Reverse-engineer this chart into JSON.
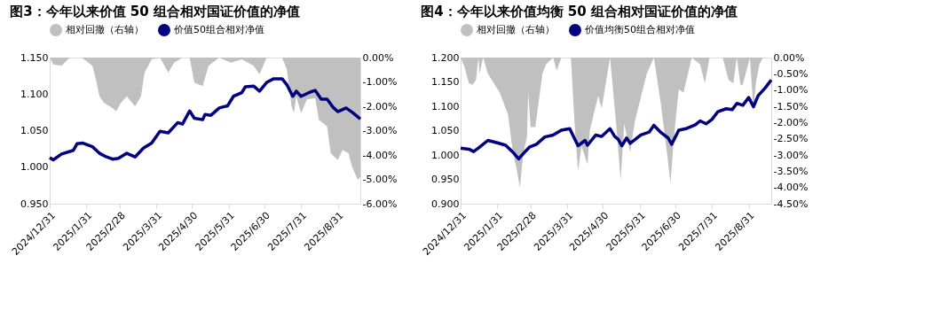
{
  "chart_data": [
    {
      "type": "line",
      "title": "图3：今年以来价值 50 组合相对国证价值的净值",
      "legend": "top",
      "grid": false,
      "xlim": [
        "2024-12-31",
        "2025-09-19"
      ],
      "xticks": [
        {
          "value": "2024-12-31",
          "label": "2024/12/31"
        },
        {
          "value": "2025-01-31",
          "label": "2025/1/31"
        },
        {
          "value": "2025-02-28",
          "label": "2025/2/28"
        },
        {
          "value": "2025-03-31",
          "label": "2025/3/31"
        },
        {
          "value": "2025-04-30",
          "label": "2025/4/30"
        },
        {
          "value": "2025-05-31",
          "label": "2025/5/31"
        },
        {
          "value": "2025-06-30",
          "label": "2025/6/30"
        },
        {
          "value": "2025-07-31",
          "label": "2025/7/31"
        },
        {
          "value": "2025-08-31",
          "label": "2025/8/31"
        }
      ],
      "ylim": [
        0.95,
        1.15
      ],
      "yticks": [
        {
          "value": 0.95,
          "label": "0.950"
        },
        {
          "value": 1.0,
          "label": "1.000"
        },
        {
          "value": 1.05,
          "label": "1.050"
        },
        {
          "value": 1.1,
          "label": "1.100"
        },
        {
          "value": 1.15,
          "label": "1.150"
        }
      ],
      "y2lim": [
        -6,
        0
      ],
      "y2ticks": [
        {
          "value": -6,
          "label": "-6.00%"
        },
        {
          "value": -5,
          "label": "-5.00%"
        },
        {
          "value": -4,
          "label": "-4.00%"
        },
        {
          "value": -3,
          "label": "-3.00%"
        },
        {
          "value": -2,
          "label": "-2.00%"
        },
        {
          "value": -1,
          "label": "-1.00%"
        },
        {
          "value": 0,
          "label": "0.00%"
        }
      ],
      "series": [
        {
          "name": "相对回撤（右轴）",
          "type": "area",
          "axis": "y2",
          "color": "#c0c0c0",
          "x": [
            "2024-12-31",
            "2025-01-03",
            "2025-01-10",
            "2025-01-17",
            "2025-01-27",
            "2025-02-05",
            "2025-02-08",
            "2025-02-11",
            "2025-02-15",
            "2025-02-22",
            "2025-02-25",
            "2025-03-01",
            "2025-03-06",
            "2025-03-13",
            "2025-03-18",
            "2025-03-21",
            "2025-03-27",
            "2025-04-03",
            "2025-04-10",
            "2025-04-15",
            "2025-04-22",
            "2025-04-28",
            "2025-05-02",
            "2025-05-09",
            "2025-05-14",
            "2025-05-23",
            "2025-06-02",
            "2025-06-11",
            "2025-06-21",
            "2025-06-26",
            "2025-07-02",
            "2025-07-15",
            "2025-07-19",
            "2025-07-23",
            "2025-07-25",
            "2025-07-27",
            "2025-07-31",
            "2025-08-05",
            "2025-08-12",
            "2025-08-15",
            "2025-08-22",
            "2025-08-25",
            "2025-08-31",
            "2025-09-04",
            "2025-09-09",
            "2025-09-12",
            "2025-09-17",
            "2025-09-19"
          ],
          "values": [
            0,
            -0.28,
            -0.34,
            0,
            0,
            -0.34,
            -0.9,
            -1.59,
            -1.86,
            -2.07,
            -2.21,
            -1.86,
            -1.59,
            -2.0,
            -1.59,
            -0.62,
            -0.07,
            0,
            -0.62,
            -0.21,
            0,
            0,
            -1.03,
            -1.17,
            -0.34,
            0,
            -0.21,
            -0.07,
            -0.34,
            -0.69,
            0,
            0,
            -0.48,
            -2.0,
            -2.28,
            -1.59,
            -2.28,
            -1.72,
            -1.66,
            -2.55,
            -2.83,
            -3.93,
            -4.21,
            -3.79,
            -3.93,
            -4.48,
            -5.03,
            -4.9
          ]
        },
        {
          "name": "价值50组合相对净值",
          "color": "#000080",
          "x": [
            "2024-12-31",
            "2025-01-03",
            "2025-01-10",
            "2025-01-20",
            "2025-01-23",
            "2025-01-28",
            "2025-02-05",
            "2025-02-11",
            "2025-02-17",
            "2025-02-22",
            "2025-02-27",
            "2025-03-06",
            "2025-03-13",
            "2025-03-20",
            "2025-03-27",
            "2025-04-03",
            "2025-04-10",
            "2025-04-18",
            "2025-04-22",
            "2025-04-28",
            "2025-05-02",
            "2025-05-09",
            "2025-05-11",
            "2025-05-16",
            "2025-05-23",
            "2025-05-30",
            "2025-06-04",
            "2025-06-11",
            "2025-06-14",
            "2025-06-21",
            "2025-06-26",
            "2025-07-02",
            "2025-07-08",
            "2025-07-15",
            "2025-07-19",
            "2025-07-24",
            "2025-07-27",
            "2025-07-31",
            "2025-08-08",
            "2025-08-12",
            "2025-08-17",
            "2025-08-22",
            "2025-08-27",
            "2025-08-31",
            "2025-09-07",
            "2025-09-13",
            "2025-09-19"
          ],
          "values": [
            1.013,
            1.01,
            1.018,
            1.023,
            1.032,
            1.033,
            1.028,
            1.019,
            1.014,
            1.011,
            1.012,
            1.019,
            1.014,
            1.026,
            1.033,
            1.049,
            1.047,
            1.061,
            1.059,
            1.077,
            1.067,
            1.065,
            1.072,
            1.071,
            1.081,
            1.084,
            1.097,
            1.102,
            1.11,
            1.111,
            1.104,
            1.116,
            1.121,
            1.121,
            1.113,
            1.097,
            1.104,
            1.097,
            1.103,
            1.105,
            1.093,
            1.093,
            1.082,
            1.076,
            1.081,
            1.074,
            1.066
          ]
        }
      ]
    },
    {
      "type": "line",
      "title": "图4：今年以来价值均衡 50 组合相对国证价值的净值",
      "legend": "top",
      "grid": false,
      "xlim": [
        "2024-12-31",
        "2025-09-19"
      ],
      "xticks": [
        {
          "value": "2024-12-31",
          "label": "2024/12/31"
        },
        {
          "value": "2025-01-31",
          "label": "2025/1/31"
        },
        {
          "value": "2025-02-28",
          "label": "2025/2/28"
        },
        {
          "value": "2025-03-31",
          "label": "2025/3/31"
        },
        {
          "value": "2025-04-30",
          "label": "2025/4/30"
        },
        {
          "value": "2025-05-31",
          "label": "2025/5/31"
        },
        {
          "value": "2025-06-30",
          "label": "2025/6/30"
        },
        {
          "value": "2025-07-31",
          "label": "2025/7/31"
        },
        {
          "value": "2025-08-31",
          "label": "2025/8/31"
        }
      ],
      "ylim": [
        0.9,
        1.2
      ],
      "yticks": [
        {
          "value": 0.9,
          "label": "0.900"
        },
        {
          "value": 0.95,
          "label": "0.950"
        },
        {
          "value": 1.0,
          "label": "1.000"
        },
        {
          "value": 1.05,
          "label": "1.050"
        },
        {
          "value": 1.1,
          "label": "1.100"
        },
        {
          "value": 1.15,
          "label": "1.150"
        },
        {
          "value": 1.2,
          "label": "1.200"
        }
      ],
      "y2lim": [
        -4.5,
        0
      ],
      "y2ticks": [
        {
          "value": -4.5,
          "label": "-4.50%"
        },
        {
          "value": -4,
          "label": "-4.00%"
        },
        {
          "value": -3.5,
          "label": "-3.50%"
        },
        {
          "value": -3,
          "label": "-3.00%"
        },
        {
          "value": -2.5,
          "label": "-2.50%"
        },
        {
          "value": -2,
          "label": "-2.00%"
        },
        {
          "value": -1.5,
          "label": "-1.50%"
        },
        {
          "value": -1,
          "label": "-1.00%"
        },
        {
          "value": -0.5,
          "label": "-0.50%"
        },
        {
          "value": 0,
          "label": "0.00%"
        }
      ],
      "series": [
        {
          "name": "相对回撤（右轴）",
          "type": "area",
          "axis": "y2",
          "color": "#c0c0c0",
          "x": [
            "2024-12-31",
            "2025-01-03",
            "2025-01-07",
            "2025-01-10",
            "2025-01-13",
            "2025-01-15",
            "2025-01-16",
            "2025-01-19",
            "2025-01-23",
            "2025-02-02",
            "2025-02-09",
            "2025-02-13",
            "2025-02-16",
            "2025-02-19",
            "2025-02-22",
            "2025-02-25",
            "2025-02-26",
            "2025-02-28",
            "2025-03-04",
            "2025-03-10",
            "2025-03-13",
            "2025-03-19",
            "2025-03-22",
            "2025-03-26",
            "2025-04-03",
            "2025-04-06",
            "2025-04-09",
            "2025-04-12",
            "2025-04-17",
            "2025-04-19",
            "2025-04-26",
            "2025-04-29",
            "2025-05-06",
            "2025-05-11",
            "2025-05-15",
            "2025-05-18",
            "2025-05-23",
            "2025-05-27",
            "2025-06-06",
            "2025-06-12",
            "2025-06-18",
            "2025-06-23",
            "2025-06-26",
            "2025-06-29",
            "2025-07-03",
            "2025-07-07",
            "2025-07-14",
            "2025-07-21",
            "2025-07-25",
            "2025-07-29",
            "2025-08-09",
            "2025-08-14",
            "2025-08-18",
            "2025-08-21",
            "2025-08-24",
            "2025-08-26",
            "2025-09-01",
            "2025-09-04",
            "2025-09-06",
            "2025-09-09",
            "2025-09-12",
            "2025-09-19"
          ],
          "values": [
            0,
            -0.26,
            -0.79,
            -0.84,
            -0.69,
            0,
            -0.5,
            0,
            -0.5,
            -1.08,
            -1.75,
            -2.91,
            -3.39,
            -4.0,
            -2.91,
            -2.43,
            -1.08,
            -2.14,
            -2.14,
            -0.5,
            -0.21,
            0,
            -0.4,
            0,
            0,
            -1.96,
            -3.49,
            -2.72,
            -3.29,
            -2.24,
            -1.18,
            -1.56,
            0,
            -1.96,
            -3.78,
            -2.04,
            -2.91,
            -1.96,
            -0.5,
            0,
            -1.46,
            -2.91,
            -3.87,
            -2.43,
            -0.98,
            -1.08,
            0,
            -0.21,
            -0.79,
            0,
            0,
            -0.69,
            -0.79,
            0,
            -0.84,
            -0.84,
            0,
            -1.66,
            -0.79,
            -0.21,
            0,
            0
          ]
        },
        {
          "name": "价值均衡50组合相对净值",
          "color": "#000080",
          "x": [
            "2024-12-31",
            "2025-01-07",
            "2025-01-11",
            "2025-01-16",
            "2025-01-23",
            "2025-01-31",
            "2025-02-07",
            "2025-02-13",
            "2025-02-18",
            "2025-02-23",
            "2025-02-27",
            "2025-03-05",
            "2025-03-12",
            "2025-03-19",
            "2025-03-26",
            "2025-04-02",
            "2025-04-09",
            "2025-04-15",
            "2025-04-17",
            "2025-04-24",
            "2025-04-29",
            "2025-05-06",
            "2025-05-10",
            "2025-05-13",
            "2025-05-16",
            "2025-05-20",
            "2025-05-23",
            "2025-06-01",
            "2025-06-08",
            "2025-06-12",
            "2025-06-18",
            "2025-06-24",
            "2025-06-27",
            "2025-07-03",
            "2025-07-09",
            "2025-07-17",
            "2025-07-21",
            "2025-07-26",
            "2025-07-31",
            "2025-08-05",
            "2025-08-12",
            "2025-08-17",
            "2025-08-21",
            "2025-08-26",
            "2025-08-31",
            "2025-09-04",
            "2025-09-08",
            "2025-09-14",
            "2025-09-19"
          ],
          "values": [
            1.014,
            1.012,
            1.007,
            1.016,
            1.03,
            1.025,
            1.02,
            1.006,
            0.992,
            1.006,
            1.016,
            1.022,
            1.037,
            1.041,
            1.051,
            1.054,
            1.019,
            1.03,
            1.02,
            1.041,
            1.038,
            1.054,
            1.038,
            1.032,
            1.019,
            1.035,
            1.024,
            1.041,
            1.047,
            1.061,
            1.046,
            1.035,
            1.022,
            1.051,
            1.054,
            1.062,
            1.07,
            1.064,
            1.073,
            1.089,
            1.095,
            1.093,
            1.106,
            1.102,
            1.118,
            1.099,
            1.122,
            1.138,
            1.154
          ]
        }
      ]
    }
  ]
}
